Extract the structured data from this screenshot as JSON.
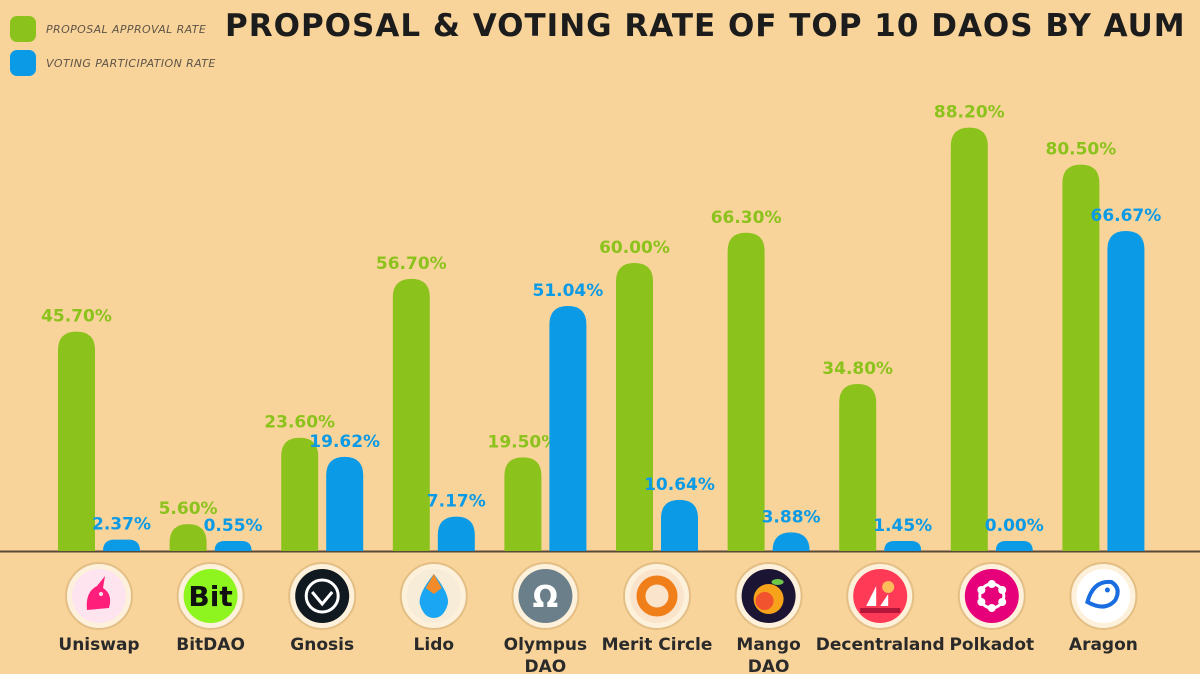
{
  "colors": {
    "background": "#f9d49a",
    "approval": "#8cc21c",
    "participation": "#0b9ae6",
    "axis": "#5a4a3a",
    "category_text": "#2a2a2a"
  },
  "legend": {
    "approval_label": "PROPOSAL APPROVAL RATE",
    "participation_label": "VOTING PARTICIPATION RATE"
  },
  "chart_data": {
    "type": "bar",
    "title": "PROPOSAL & VOTING RATE OF TOP 10 DAOS BY AUM",
    "xlabel": "",
    "ylabel": "",
    "ylim": [
      0,
      100
    ],
    "grid": false,
    "legend_position": "top-left",
    "categories": [
      "Uniswap",
      "BitDAO",
      "Gnosis",
      "Lido",
      "Olympus DAO",
      "Merit Circle",
      "Mango DAO",
      "Decentraland",
      "Polkadot",
      "Aragon"
    ],
    "category_icons": [
      "unicorn-icon",
      "bit-icon",
      "owl-icon",
      "drop-icon",
      "omega-icon",
      "ring-icon",
      "mango-icon",
      "sailboat-icon",
      "dots-ring-icon",
      "bird-icon"
    ],
    "series": [
      {
        "name": "PROPOSAL APPROVAL RATE",
        "values": [
          45.7,
          5.6,
          23.6,
          56.7,
          19.5,
          60.0,
          66.3,
          34.8,
          88.2,
          80.5
        ],
        "labels": [
          "45.70%",
          "5.60%",
          "23.60%",
          "56.70%",
          "19.50%",
          "60.00%",
          "66.30%",
          "34.80%",
          "88.20%",
          "80.50%"
        ]
      },
      {
        "name": "VOTING PARTICIPATION RATE",
        "values": [
          2.37,
          0.55,
          19.62,
          7.17,
          51.04,
          10.64,
          3.88,
          1.45,
          0.0,
          66.67
        ],
        "labels": [
          "2.37%",
          "0.55%",
          "19.62%",
          "7.17%",
          "51.04%",
          "10.64%",
          "3.88%",
          "1.45%",
          "0.00%",
          "66.67%"
        ]
      }
    ]
  }
}
